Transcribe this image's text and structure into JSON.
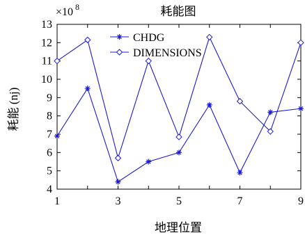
{
  "chart_data": {
    "type": "line",
    "title": "耗能图",
    "xlabel": "地理位置",
    "ylabel": "耗能  (nj)",
    "y_multiplier_label": "×10",
    "y_multiplier_exp": "8",
    "xlim": [
      1,
      9
    ],
    "ylim": [
      4,
      13
    ],
    "x_ticks": [
      1,
      3,
      5,
      7,
      9
    ],
    "y_ticks": [
      4,
      5,
      6,
      7,
      8,
      9,
      10,
      11,
      12,
      13
    ],
    "grid": false,
    "legend_position": "top-center",
    "x": [
      1,
      2,
      3,
      4,
      5,
      6,
      7,
      8,
      9
    ],
    "series": [
      {
        "name": "CHDG",
        "marker": "star",
        "color": "#1a1ad6",
        "values": [
          6.9,
          9.5,
          4.4,
          5.5,
          6.0,
          8.6,
          4.9,
          8.2,
          8.4
        ]
      },
      {
        "name": "DIMENSIONS",
        "marker": "diamond",
        "color": "#1a1ad6",
        "values": [
          11.0,
          12.15,
          5.7,
          11.0,
          6.85,
          12.3,
          8.8,
          7.15,
          12.0
        ]
      }
    ]
  }
}
